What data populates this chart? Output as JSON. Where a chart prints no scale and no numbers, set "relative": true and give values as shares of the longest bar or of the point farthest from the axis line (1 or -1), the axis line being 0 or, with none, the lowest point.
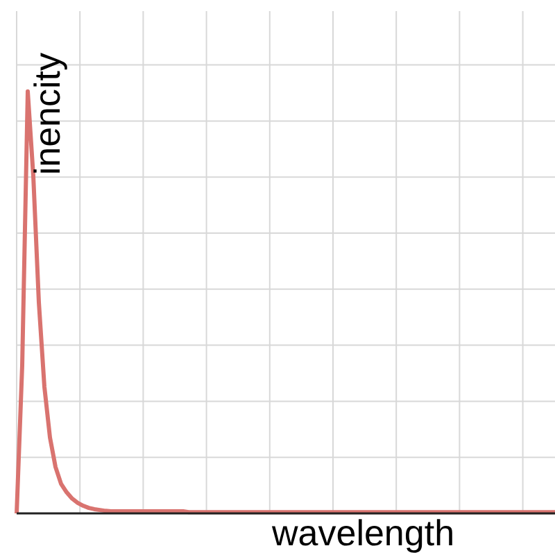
{
  "chart_data": {
    "type": "line",
    "xlabel": "wavelength",
    "ylabel": "inencity",
    "relative": true,
    "grid": true,
    "marker": "none",
    "categories": [
      null,
      null,
      null,
      null,
      null,
      null,
      null,
      null,
      null,
      null,
      null,
      null,
      null,
      null,
      null,
      null,
      null,
      null,
      null,
      null,
      null,
      null,
      null,
      null,
      null,
      null,
      null,
      null,
      null,
      null,
      null,
      null,
      null,
      null,
      null,
      null,
      null,
      null,
      null,
      null,
      null,
      null,
      null,
      null,
      null,
      null,
      null,
      null,
      null,
      null,
      null,
      null,
      null,
      null,
      null,
      null,
      null,
      null,
      null,
      null,
      null,
      null,
      null,
      null,
      null,
      null,
      null,
      null,
      null,
      null,
      null,
      null,
      null,
      null,
      null,
      null,
      null,
      null,
      null,
      null,
      null,
      null,
      null,
      null,
      null,
      null,
      null,
      null,
      null,
      null,
      null,
      null,
      null,
      null,
      null,
      null,
      null,
      null
    ],
    "series": [
      {
        "color": "#d9736f",
        "values": [
          0,
          0.35,
          1,
          0.8,
          0.5,
          0.3,
          0.18,
          0.11,
          0.07,
          0.05,
          0.035,
          0.025,
          0.018,
          0.013,
          0.01,
          0.008,
          0.006,
          0.005,
          0.005,
          0.005,
          0.005,
          0.005,
          0.005,
          0.005,
          0.005,
          0.005,
          0.005,
          0.005,
          0.005,
          0.005,
          0.005,
          0.003,
          0.003,
          0.003,
          0.003,
          0.003,
          0.003,
          0.003,
          0.003,
          0.003,
          0.003,
          0.003,
          0.003,
          0.003,
          0.003,
          0.003,
          0.003,
          0.003,
          0.003,
          0.003,
          0.003,
          0.003,
          0.003,
          0.003,
          0.003,
          0.003,
          0.003,
          0.003,
          0.003,
          0.003,
          0.003,
          0.003,
          0.003,
          0.003,
          0.003,
          0.003,
          0.003,
          0.003,
          0.003,
          0.003,
          0.003,
          0.003,
          0.003,
          0.003,
          0.003,
          0.003,
          0.003,
          0.003,
          0.003,
          0.003,
          0.003,
          0.003,
          0.003,
          0.003,
          0.003,
          0.003,
          0.003,
          0.003,
          0.003,
          0.003,
          0.003,
          0.003,
          0.003,
          0.003,
          0.003,
          0.003,
          0.003,
          0.003
        ]
      }
    ]
  }
}
